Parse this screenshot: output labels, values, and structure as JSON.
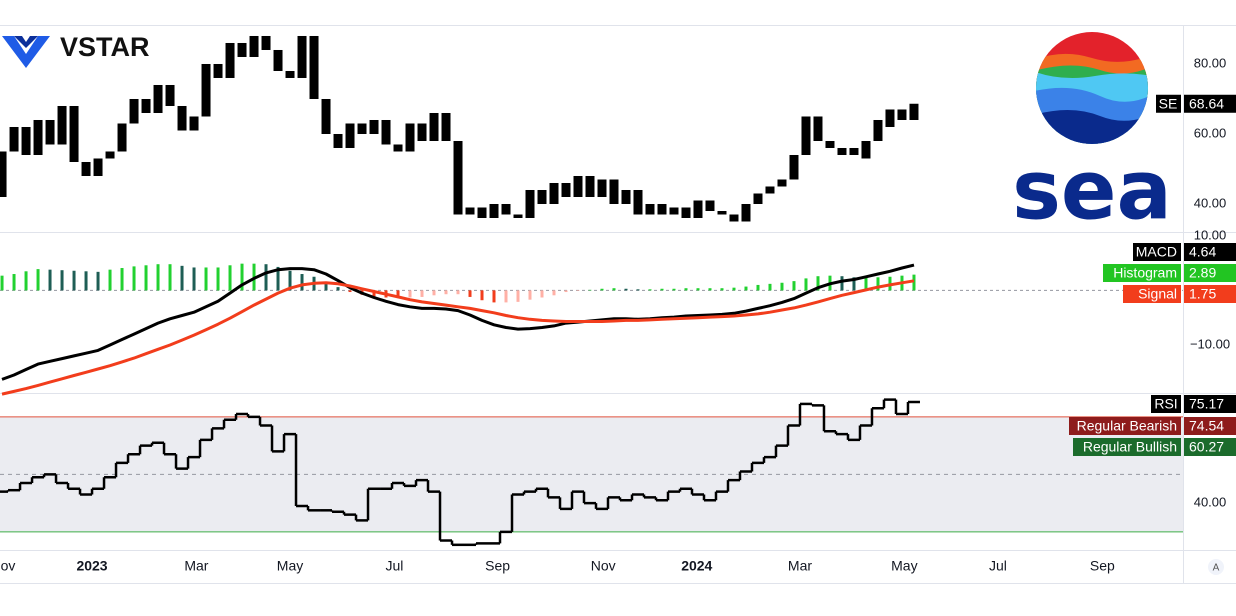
{
  "brand": "VSTAR",
  "logo_text": "sea",
  "scale_button": "A",
  "chart_data": [
    {
      "type": "candlestick",
      "name": "SE",
      "color": "#000000",
      "open": [
        42,
        55,
        62,
        54,
        64,
        57,
        68,
        52,
        48,
        53,
        55,
        63,
        70,
        66,
        74,
        68,
        61,
        65,
        80,
        76,
        86,
        82,
        88,
        84,
        78,
        76,
        88,
        70,
        60,
        56,
        63,
        60,
        64,
        57,
        55,
        63,
        58,
        66,
        58,
        37,
        39,
        36,
        40,
        37,
        36,
        44,
        40,
        46,
        42,
        48,
        42,
        47,
        40,
        44,
        37,
        40,
        37,
        39,
        36,
        41,
        38,
        37,
        35,
        40,
        43,
        45,
        47,
        54,
        65,
        58,
        56,
        54,
        53,
        58,
        62,
        64,
        64
      ],
      "close": [
        55,
        62,
        54,
        64,
        57,
        68,
        52,
        48,
        53,
        55,
        63,
        70,
        66,
        74,
        68,
        61,
        65,
        80,
        76,
        86,
        82,
        88,
        84,
        78,
        76,
        88,
        70,
        60,
        56,
        63,
        60,
        64,
        57,
        55,
        63,
        58,
        66,
        58,
        37,
        39,
        36,
        40,
        37,
        36,
        44,
        40,
        46,
        42,
        48,
        42,
        47,
        40,
        44,
        37,
        40,
        37,
        39,
        36,
        41,
        38,
        37,
        35,
        40,
        43,
        45,
        47,
        54,
        65,
        58,
        56,
        54,
        56,
        58,
        64,
        67,
        67,
        68.64
      ],
      "ylim": [
        32,
        91.14
      ],
      "yticks": [
        {
          "value": 80,
          "label": "80.00"
        },
        {
          "value": 60,
          "label": "60.00"
        },
        {
          "value": 40,
          "label": "40.00"
        }
      ]
    },
    {
      "type": "macd",
      "zero_line": 0,
      "histogram_colors": [
        "#22d130",
        "#1e5e55",
        "#ffb0a6",
        "#f23d1c"
      ],
      "series": [
        {
          "name": "MACD",
          "color": "#000000",
          "values": [
            -16.3,
            -15.5,
            -14.5,
            -13.5,
            -13,
            -12.5,
            -12,
            -11.5,
            -11,
            -10,
            -9,
            -8,
            -7,
            -6,
            -5.2,
            -4.6,
            -4,
            -3,
            -2,
            -0.5,
            1,
            2.2,
            3.2,
            3.8,
            4,
            4,
            3.8,
            3,
            1.8,
            0.5,
            -0.5,
            -1.3,
            -2,
            -2.6,
            -3,
            -3.3,
            -3.3,
            -3.4,
            -3.7,
            -4.5,
            -5.5,
            -6.3,
            -6.8,
            -7.1,
            -7,
            -6.8,
            -6.5,
            -6,
            -5.8,
            -5.6,
            -5.4,
            -5.2,
            -5.2,
            -5.3,
            -5.2,
            -5,
            -4.9,
            -4.7,
            -4.6,
            -4.5,
            -4.4,
            -4.2,
            -3.8,
            -3.3,
            -2.8,
            -2.2,
            -1.5,
            -0.5,
            0.5,
            1.2,
            1.7,
            2,
            2.5,
            3,
            3.5,
            4.1,
            4.64
          ]
        },
        {
          "name": "Histogram",
          "color": "#22c522",
          "values": [
            2.7,
            3,
            3.5,
            3.9,
            3.8,
            3.7,
            3.6,
            3.5,
            3.4,
            3.8,
            4.1,
            4.4,
            4.6,
            4.8,
            4.8,
            4.5,
            4.2,
            4.2,
            4.2,
            4.6,
            4.9,
            4.9,
            4.8,
            4.3,
            3.6,
            3,
            2.5,
            1.6,
            0.6,
            -0.3,
            -0.8,
            -1.1,
            -1.3,
            -1.4,
            -1.3,
            -1.2,
            -0.9,
            -0.7,
            -0.7,
            -1.2,
            -1.8,
            -2.2,
            -2.2,
            -2.1,
            -1.7,
            -1.3,
            -0.9,
            -0.3,
            -0.1,
            0.1,
            0.3,
            0.4,
            0.3,
            0.2,
            0.2,
            0.3,
            0.3,
            0.4,
            0.4,
            0.4,
            0.4,
            0.5,
            0.7,
            1,
            1.2,
            1.4,
            1.7,
            2.2,
            2.6,
            2.7,
            2.6,
            2.4,
            2.4,
            2.4,
            2.5,
            2.7,
            2.89
          ]
        },
        {
          "name": "Signal",
          "color": "#f23d1c",
          "values": [
            -19,
            -18.5,
            -18,
            -17.4,
            -16.8,
            -16.2,
            -15.6,
            -15,
            -14.4,
            -13.8,
            -13.1,
            -12.4,
            -11.6,
            -10.8,
            -10,
            -9.1,
            -8.2,
            -7.2,
            -6.2,
            -5.1,
            -3.9,
            -2.7,
            -1.6,
            -0.5,
            0.4,
            1,
            1.3,
            1.4,
            1.2,
            0.8,
            0.3,
            -0.2,
            -0.7,
            -1.2,
            -1.7,
            -2.1,
            -2.4,
            -2.7,
            -3,
            -3.3,
            -3.7,
            -4.1,
            -4.6,
            -5,
            -5.3,
            -5.5,
            -5.6,
            -5.7,
            -5.7,
            -5.7,
            -5.7,
            -5.6,
            -5.5,
            -5.5,
            -5.4,
            -5.3,
            -5.2,
            -5.1,
            -5,
            -4.9,
            -4.8,
            -4.7,
            -4.5,
            -4.3,
            -4,
            -3.6,
            -3.2,
            -2.7,
            -2.1,
            -1.5,
            -0.9,
            -0.4,
            0.1,
            0.6,
            1,
            1.4,
            1.75
          ]
        }
      ],
      "ylim": [
        -18.8,
        10.7
      ],
      "yticks": [
        {
          "value": 10,
          "label": "10.00"
        },
        {
          "value": -10,
          "label": "−10.00"
        }
      ]
    },
    {
      "type": "rsi",
      "series": [
        {
          "name": "RSI",
          "color": "#000000",
          "values": [
            44,
            44.5,
            47,
            49,
            50,
            47,
            45,
            43,
            45,
            49,
            54,
            57,
            60,
            61,
            57,
            52,
            56,
            62,
            66,
            69,
            71,
            70,
            67,
            58,
            64,
            39,
            37.5,
            37.5,
            37,
            36,
            34,
            45,
            45,
            47,
            46,
            48,
            44,
            27,
            25.5,
            25.5,
            26,
            26,
            30,
            43,
            44,
            45,
            42,
            38,
            44,
            40,
            38,
            42,
            41,
            43,
            42,
            41,
            44,
            45,
            43,
            41,
            44,
            48,
            51,
            54,
            56,
            60,
            67,
            74.5,
            74,
            65,
            64,
            62,
            67,
            73,
            76,
            71,
            75.17
          ]
        }
      ],
      "badges": [
        {
          "name": "Regular Bearish",
          "value": 74.54,
          "color": "#8e1c1c"
        },
        {
          "name": "Regular Bullish",
          "value": 60.27,
          "color": "#1b6b2c"
        }
      ],
      "levels": [
        {
          "value": 70,
          "color": "#e0503c"
        },
        {
          "value": 50,
          "color": "#9598a1"
        },
        {
          "value": 30,
          "color": "#3fae49"
        }
      ],
      "band_color": "#ebecf1",
      "ylim": [
        23.7,
        78.3
      ],
      "yticks": [
        {
          "value": 40,
          "label": "40.00"
        }
      ],
      "xlim": [
        -0.17,
        98.42
      ],
      "xticks": [
        {
          "value": 0.5,
          "label": "ov"
        },
        {
          "value": 7.5,
          "label": "2023"
        },
        {
          "value": 16.2,
          "label": "Mar"
        },
        {
          "value": 24,
          "label": "May"
        },
        {
          "value": 32.7,
          "label": "Jul"
        },
        {
          "value": 41.3,
          "label": "Sep"
        },
        {
          "value": 50.1,
          "label": "Nov"
        },
        {
          "value": 57.9,
          "label": "2024"
        },
        {
          "value": 66.5,
          "label": "Mar"
        },
        {
          "value": 75.2,
          "label": "May"
        },
        {
          "value": 83,
          "label": "Jul"
        },
        {
          "value": 91.7,
          "label": "Sep"
        }
      ]
    }
  ]
}
